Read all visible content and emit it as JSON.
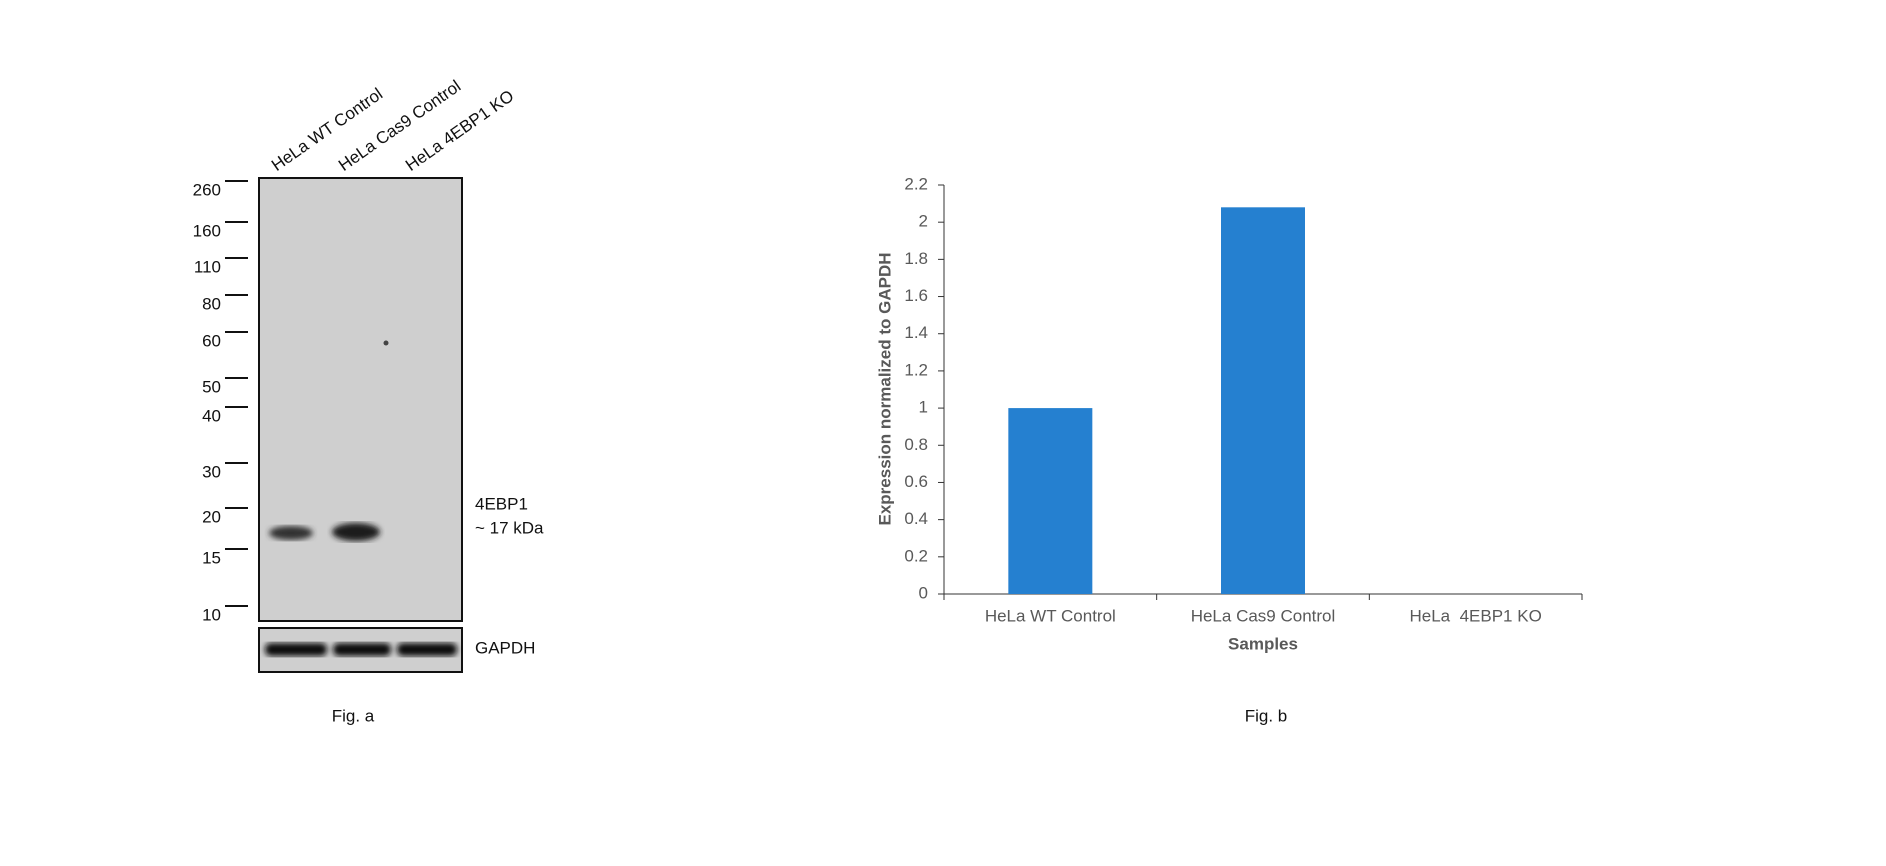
{
  "western_blot": {
    "lanes": [
      "HeLa WT Control",
      "HeLa Cas9 Control",
      "HeLa 4EBP1 KO"
    ],
    "markers": [
      "260",
      "160",
      "110",
      "80",
      "60",
      "50",
      "40",
      "30",
      "20",
      "15",
      "10"
    ],
    "band_label": "4EBP1",
    "band_size": "~ 17 kDa",
    "loading_control": "GAPDH",
    "caption": "Fig. a"
  },
  "chart_data": {
    "type": "bar",
    "categories": [
      "HeLa WT Control",
      "HeLa Cas9 Control",
      "HeLa  4EBP1 KO"
    ],
    "values": [
      1,
      2.08,
      0
    ],
    "color": "#2580d0",
    "ylim": [
      0,
      2.2
    ],
    "yticks": [
      0,
      0.2,
      0.4,
      0.6,
      0.8,
      1,
      1.2,
      1.4,
      1.6,
      1.8,
      2,
      2.2
    ],
    "y_label": "Expression normalized to GAPDH",
    "x_label": "Samples",
    "caption": "Fig. b"
  }
}
